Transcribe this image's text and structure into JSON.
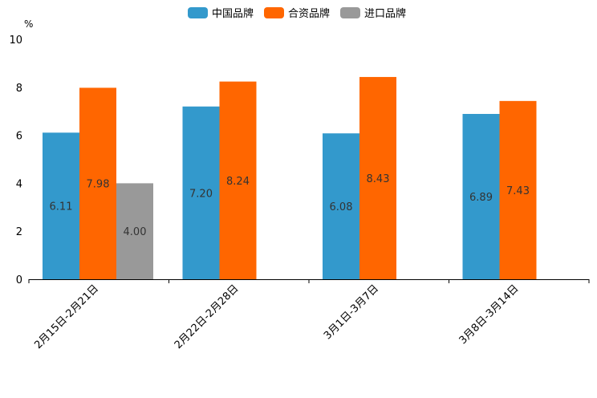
{
  "chart_data": {
    "type": "bar",
    "title": "",
    "ylabel": "%",
    "xlabel": "",
    "ylim": [
      0,
      10
    ],
    "yticks": [
      0,
      2,
      4,
      6,
      8,
      10
    ],
    "legend_position": "top-center",
    "categories": [
      "2月15日-2月21日",
      "2月22日-2月28日",
      "3月1日-3月7日",
      "3月8日-3月14日"
    ],
    "series": [
      {
        "name": "中国品牌",
        "color": "#3399cc",
        "values": [
          6.11,
          7.2,
          6.08,
          6.89
        ],
        "labels": [
          "6.11",
          "7.20",
          "6.08",
          "6.89"
        ]
      },
      {
        "name": "合资品牌",
        "color": "#ff6600",
        "values": [
          7.98,
          8.24,
          8.43,
          7.43
        ],
        "labels": [
          "7.98",
          "8.24",
          "8.43",
          "7.43"
        ]
      },
      {
        "name": "进口品牌",
        "color": "#999999",
        "values": [
          4.0,
          null,
          null,
          null
        ],
        "labels": [
          "4.00",
          null,
          null,
          null
        ]
      }
    ]
  }
}
